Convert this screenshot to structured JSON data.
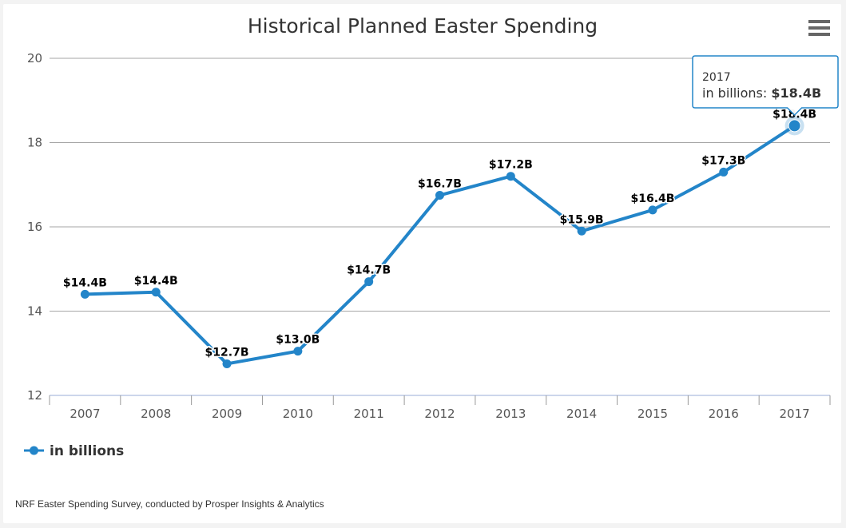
{
  "menu": {
    "icon": "hamburger-menu-icon"
  },
  "colors": {
    "series": "#2385c9",
    "grid": "#a6a6a6",
    "axis": "#ccd6eb",
    "tooltip_border": "#2385c9",
    "tick": "#999999"
  },
  "tooltip": {
    "header": "2017",
    "label": "in billions: ",
    "value": "$18.4B"
  },
  "credit": "NRF Easter Spending Survey, conducted by Prosper Insights & Analytics",
  "chart_data": {
    "type": "line",
    "title": "Historical Planned Easter Spending",
    "xlabel": "",
    "ylabel": "",
    "categories": [
      "2007",
      "2008",
      "2009",
      "2010",
      "2011",
      "2012",
      "2013",
      "2014",
      "2015",
      "2016",
      "2017"
    ],
    "series": [
      {
        "name": "in billions",
        "values": [
          14.4,
          14.45,
          12.75,
          13.05,
          14.7,
          16.75,
          17.2,
          15.9,
          16.4,
          17.3,
          18.4
        ],
        "data_labels": [
          "$14.4B",
          "$14.4B",
          "$12.7B",
          "$13.0B",
          "$14.7B",
          "$16.7B",
          "$17.2B",
          "$15.9B",
          "$16.4B",
          "$17.3B",
          "$18.4B"
        ]
      }
    ],
    "ylim": [
      12,
      20
    ],
    "yticks": [
      "12",
      "14",
      "16",
      "18",
      "20"
    ],
    "ytick_values": [
      12,
      14,
      16,
      18,
      20
    ],
    "grid": true,
    "legend": "bottom-left",
    "highlighted_point": "2017"
  }
}
